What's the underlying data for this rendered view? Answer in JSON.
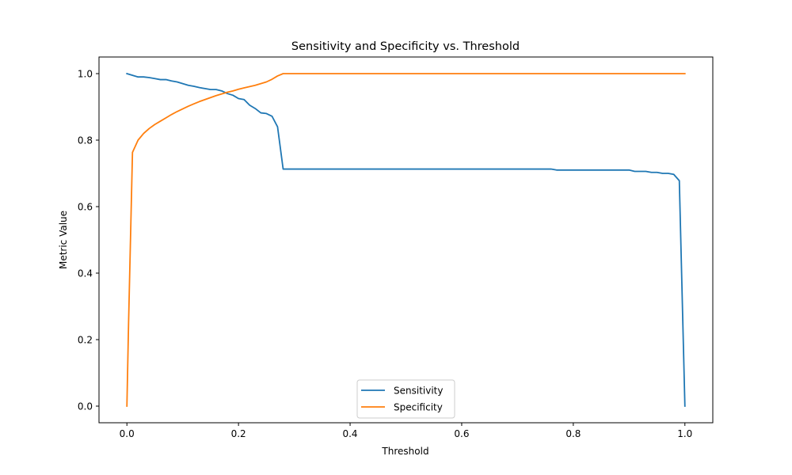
{
  "chart_data": {
    "type": "line",
    "title": "Sensitivity and Specificity vs. Threshold",
    "xlabel": "Threshold",
    "ylabel": "Metric Value",
    "xlim": [
      -0.05,
      1.05
    ],
    "ylim": [
      -0.05,
      1.05
    ],
    "xticks": [
      0.0,
      0.2,
      0.4,
      0.6,
      0.8,
      1.0
    ],
    "yticks": [
      0.0,
      0.2,
      0.4,
      0.6,
      0.8,
      1.0
    ],
    "xtick_labels": [
      "0.0",
      "0.2",
      "0.4",
      "0.6",
      "0.8",
      "1.0"
    ],
    "ytick_labels": [
      "0.0",
      "0.2",
      "0.4",
      "0.6",
      "0.8",
      "1.0"
    ],
    "grid": false,
    "legend_position": "lower center",
    "series": [
      {
        "name": "Sensitivity",
        "color": "#1f77b4",
        "x": [
          0.0,
          0.01,
          0.02,
          0.03,
          0.04,
          0.05,
          0.06,
          0.07,
          0.08,
          0.09,
          0.1,
          0.11,
          0.12,
          0.13,
          0.14,
          0.15,
          0.16,
          0.17,
          0.18,
          0.19,
          0.2,
          0.21,
          0.22,
          0.23,
          0.24,
          0.25,
          0.26,
          0.27,
          0.28,
          0.3,
          0.4,
          0.5,
          0.6,
          0.7,
          0.76,
          0.77,
          0.8,
          0.85,
          0.9,
          0.91,
          0.93,
          0.94,
          0.95,
          0.96,
          0.97,
          0.98,
          0.99,
          1.0
        ],
        "y": [
          1.0,
          0.995,
          0.99,
          0.99,
          0.988,
          0.985,
          0.982,
          0.982,
          0.978,
          0.975,
          0.97,
          0.965,
          0.962,
          0.958,
          0.955,
          0.952,
          0.952,
          0.948,
          0.94,
          0.935,
          0.925,
          0.922,
          0.905,
          0.895,
          0.882,
          0.88,
          0.872,
          0.84,
          0.713,
          0.713,
          0.713,
          0.713,
          0.713,
          0.713,
          0.713,
          0.71,
          0.71,
          0.71,
          0.71,
          0.706,
          0.706,
          0.703,
          0.703,
          0.7,
          0.7,
          0.697,
          0.678,
          0.0
        ]
      },
      {
        "name": "Specificity",
        "color": "#ff7f0e",
        "x": [
          0.0,
          0.003,
          0.01,
          0.02,
          0.03,
          0.04,
          0.05,
          0.06,
          0.07,
          0.08,
          0.09,
          0.1,
          0.11,
          0.12,
          0.13,
          0.14,
          0.15,
          0.16,
          0.17,
          0.18,
          0.19,
          0.2,
          0.21,
          0.22,
          0.23,
          0.24,
          0.25,
          0.26,
          0.27,
          0.28,
          0.3,
          0.4,
          0.5,
          0.6,
          0.7,
          0.8,
          0.9,
          1.0
        ],
        "y": [
          0.0,
          0.25,
          0.763,
          0.8,
          0.82,
          0.835,
          0.847,
          0.857,
          0.867,
          0.877,
          0.886,
          0.894,
          0.902,
          0.909,
          0.916,
          0.922,
          0.928,
          0.934,
          0.939,
          0.944,
          0.948,
          0.953,
          0.957,
          0.961,
          0.965,
          0.97,
          0.975,
          0.983,
          0.993,
          1.0,
          1.0,
          1.0,
          1.0,
          1.0,
          1.0,
          1.0,
          1.0,
          1.0
        ]
      }
    ]
  }
}
